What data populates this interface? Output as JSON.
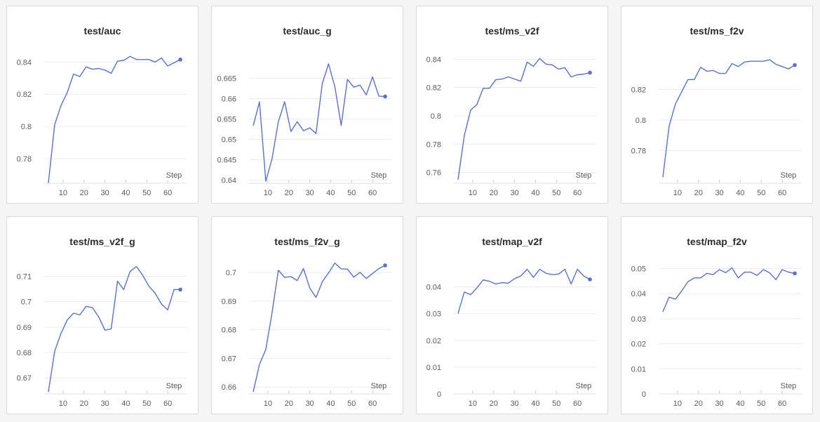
{
  "step_label": "Step",
  "line_color": "#5a6fd6",
  "grid_color": "#ececec",
  "chart_data": [
    {
      "type": "line",
      "title": "test/auc",
      "xlabel": "Step",
      "x_ticks": [
        10,
        20,
        30,
        40,
        50,
        60
      ],
      "y_ticks": [
        0.78,
        0.8,
        0.82,
        0.84
      ],
      "y_tick_labels": [
        "0.78",
        "0.8",
        "0.82",
        "0.84"
      ],
      "xlim": [
        1,
        69
      ],
      "ylim": [
        0.7648,
        0.8484
      ],
      "series": [
        {
          "x": [
            3,
            6,
            9,
            12,
            15,
            18,
            21,
            24,
            27,
            30,
            33,
            36,
            39,
            42,
            45,
            48,
            51,
            54,
            57,
            60,
            63,
            66
          ],
          "y": [
            0.765,
            0.801,
            0.813,
            0.821,
            0.8325,
            0.831,
            0.837,
            0.8355,
            0.836,
            0.835,
            0.833,
            0.8405,
            0.841,
            0.8435,
            0.8415,
            0.8415,
            0.8415,
            0.84,
            0.8425,
            0.8375,
            0.8395,
            0.8415
          ]
        }
      ]
    },
    {
      "type": "line",
      "title": "test/auc_g",
      "xlabel": "Step",
      "x_ticks": [
        10,
        20,
        30,
        40,
        50,
        60
      ],
      "y_ticks": [
        0.64,
        0.645,
        0.65,
        0.655,
        0.66,
        0.665
      ],
      "y_tick_labels": [
        "0.64",
        "0.645",
        "0.65",
        "0.655",
        "0.66",
        "0.665"
      ],
      "xlim": [
        1,
        69
      ],
      "ylim": [
        0.6392,
        0.6723
      ],
      "series": [
        {
          "x": [
            3,
            6,
            9,
            12,
            15,
            18,
            21,
            24,
            27,
            30,
            33,
            36,
            39,
            42,
            45,
            48,
            51,
            54,
            57,
            60,
            63,
            66
          ],
          "y": [
            0.6533,
            0.6592,
            0.6397,
            0.6452,
            0.6543,
            0.6592,
            0.6519,
            0.6543,
            0.6521,
            0.6528,
            0.6514,
            0.6637,
            0.6685,
            0.6629,
            0.6534,
            0.6647,
            0.6628,
            0.6633,
            0.6609,
            0.6653,
            0.6606,
            0.6605
          ]
        }
      ]
    },
    {
      "type": "line",
      "title": "test/ms_v2f",
      "xlabel": "Step",
      "x_ticks": [
        10,
        20,
        30,
        40,
        50,
        60
      ],
      "y_ticks": [
        0.76,
        0.78,
        0.8,
        0.82,
        0.84
      ],
      "y_tick_labels": [
        "0.76",
        "0.78",
        "0.8",
        "0.82",
        "0.84"
      ],
      "xlim": [
        1,
        69
      ],
      "ylim": [
        0.7524,
        0.8476
      ],
      "series": [
        {
          "x": [
            3,
            6,
            9,
            12,
            15,
            18,
            21,
            24,
            27,
            30,
            33,
            36,
            39,
            42,
            45,
            48,
            51,
            54,
            57,
            60,
            63,
            66
          ],
          "y": [
            0.755,
            0.786,
            0.804,
            0.808,
            0.8195,
            0.8195,
            0.8255,
            0.826,
            0.8275,
            0.826,
            0.8245,
            0.838,
            0.835,
            0.8405,
            0.8365,
            0.836,
            0.833,
            0.834,
            0.8275,
            0.829,
            0.8295,
            0.8305
          ]
        }
      ]
    },
    {
      "type": "line",
      "title": "test/ms_f2v",
      "xlabel": "Step",
      "x_ticks": [
        10,
        20,
        30,
        40,
        50,
        60
      ],
      "y_ticks": [
        0.78,
        0.8,
        0.82
      ],
      "y_tick_labels": [
        "0.78",
        "0.8",
        "0.82"
      ],
      "xlim": [
        1,
        69
      ],
      "ylim": [
        0.7585,
        0.8469
      ],
      "series": [
        {
          "x": [
            3,
            6,
            9,
            12,
            15,
            18,
            21,
            24,
            27,
            30,
            33,
            36,
            39,
            42,
            45,
            48,
            51,
            54,
            57,
            60,
            63,
            66
          ],
          "y": [
            0.7625,
            0.796,
            0.8105,
            0.8185,
            0.8265,
            0.8265,
            0.8345,
            0.832,
            0.8325,
            0.8305,
            0.8305,
            0.837,
            0.835,
            0.838,
            0.8385,
            0.8385,
            0.8385,
            0.8395,
            0.8365,
            0.835,
            0.8335,
            0.836
          ]
        }
      ]
    },
    {
      "type": "line",
      "title": "test/ms_v2f_g",
      "xlabel": "Step",
      "x_ticks": [
        10,
        20,
        30,
        40,
        50,
        60
      ],
      "y_ticks": [
        0.67,
        0.68,
        0.69,
        0.7,
        0.71
      ],
      "y_tick_labels": [
        "0.67",
        "0.68",
        "0.69",
        "0.7",
        "0.71"
      ],
      "xlim": [
        1,
        69
      ],
      "ylim": [
        0.6637,
        0.7168
      ],
      "series": [
        {
          "x": [
            3,
            6,
            9,
            12,
            15,
            18,
            21,
            24,
            27,
            30,
            33,
            36,
            39,
            42,
            45,
            48,
            51,
            54,
            57,
            60,
            63,
            66
          ],
          "y": [
            0.6645,
            0.6805,
            0.6875,
            0.6928,
            0.6955,
            0.6948,
            0.6982,
            0.6977,
            0.6941,
            0.6888,
            0.6893,
            0.7081,
            0.7048,
            0.7119,
            0.7139,
            0.7105,
            0.7061,
            0.7034,
            0.6991,
            0.6968,
            0.7048,
            0.7048
          ]
        }
      ]
    },
    {
      "type": "line",
      "title": "test/ms_f2v_g",
      "xlabel": "Step",
      "x_ticks": [
        10,
        20,
        30,
        40,
        50,
        60
      ],
      "y_ticks": [
        0.66,
        0.67,
        0.68,
        0.69,
        0.7
      ],
      "y_tick_labels": [
        "0.66",
        "0.67",
        "0.68",
        "0.69",
        "0.7"
      ],
      "xlim": [
        1,
        69
      ],
      "ylim": [
        0.6576,
        0.7047
      ],
      "series": [
        {
          "x": [
            3,
            6,
            9,
            12,
            15,
            18,
            21,
            24,
            27,
            30,
            33,
            36,
            39,
            42,
            45,
            48,
            51,
            54,
            57,
            60,
            63,
            66
          ],
          "y": [
            0.6583,
            0.6679,
            0.6731,
            0.6859,
            0.7008,
            0.6983,
            0.6986,
            0.6972,
            0.7014,
            0.6946,
            0.6913,
            0.6968,
            0.6999,
            0.7033,
            0.7013,
            0.7012,
            0.6984,
            0.7001,
            0.6979,
            0.6997,
            0.7014,
            0.7025
          ]
        }
      ]
    },
    {
      "type": "line",
      "title": "test/map_v2f",
      "xlabel": "Step",
      "x_ticks": [
        10,
        20,
        30,
        40,
        50,
        60
      ],
      "y_ticks": [
        0,
        0.01,
        0.02,
        0.03,
        0.04
      ],
      "y_tick_labels": [
        "0",
        "0.01",
        "0.02",
        "0.03",
        "0.04"
      ],
      "xlim": [
        1,
        69
      ],
      "ylim": [
        0,
        0.0504
      ],
      "series": [
        {
          "x": [
            3,
            6,
            9,
            12,
            15,
            18,
            21,
            24,
            27,
            30,
            33,
            36,
            39,
            42,
            45,
            48,
            51,
            54,
            57,
            60,
            63,
            66
          ],
          "y": [
            0.0301,
            0.0381,
            0.0371,
            0.0396,
            0.0426,
            0.0421,
            0.0411,
            0.0416,
            0.0414,
            0.0431,
            0.0441,
            0.0466,
            0.0436,
            0.0466,
            0.0451,
            0.0446,
            0.0448,
            0.0466,
            0.0411,
            0.0466,
            0.0441,
            0.0428
          ]
        }
      ]
    },
    {
      "type": "line",
      "title": "test/map_f2v",
      "xlabel": "Step",
      "x_ticks": [
        10,
        20,
        30,
        40,
        50,
        60
      ],
      "y_ticks": [
        0,
        0.01,
        0.02,
        0.03,
        0.04,
        0.05
      ],
      "y_tick_labels": [
        "0",
        "0.01",
        "0.02",
        "0.03",
        "0.04",
        "0.05"
      ],
      "xlim": [
        1,
        69
      ],
      "ylim": [
        0,
        0.0538
      ],
      "series": [
        {
          "x": [
            3,
            6,
            9,
            12,
            15,
            18,
            21,
            24,
            27,
            30,
            33,
            36,
            39,
            42,
            45,
            48,
            51,
            54,
            57,
            60,
            63,
            66
          ],
          "y": [
            0.0328,
            0.0386,
            0.0378,
            0.0411,
            0.0448,
            0.0463,
            0.0463,
            0.0481,
            0.0476,
            0.0496,
            0.0484,
            0.0503,
            0.0463,
            0.0486,
            0.0486,
            0.0473,
            0.0496,
            0.0483,
            0.0456,
            0.0496,
            0.0486,
            0.0481
          ]
        }
      ]
    }
  ]
}
